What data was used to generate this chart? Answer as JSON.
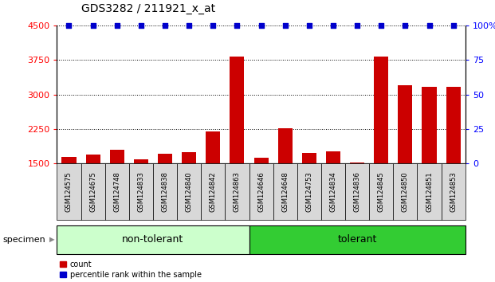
{
  "title": "GDS3282 / 211921_x_at",
  "categories": [
    "GSM124575",
    "GSM124675",
    "GSM124748",
    "GSM124833",
    "GSM124838",
    "GSM124840",
    "GSM124842",
    "GSM124863",
    "GSM124646",
    "GSM124648",
    "GSM124753",
    "GSM124834",
    "GSM124836",
    "GSM124845",
    "GSM124850",
    "GSM124851",
    "GSM124853"
  ],
  "count_values": [
    1650,
    1700,
    1800,
    1600,
    1720,
    1750,
    2200,
    3820,
    1620,
    2270,
    1730,
    1760,
    1530,
    3820,
    3200,
    3170,
    3170
  ],
  "percentile_values": [
    100,
    100,
    100,
    100,
    100,
    100,
    100,
    100,
    100,
    100,
    100,
    100,
    100,
    100,
    100,
    100,
    100
  ],
  "non_tolerant_count": 8,
  "tolerant_count": 9,
  "bar_color": "#cc0000",
  "dot_color": "#0000cc",
  "ylim_left": [
    1500,
    4500
  ],
  "ylim_right": [
    0,
    100
  ],
  "yticks_left": [
    1500,
    2250,
    3000,
    3750,
    4500
  ],
  "yticks_right": [
    0,
    25,
    50,
    75,
    100
  ],
  "non_tolerant_label": "non-tolerant",
  "tolerant_label": "tolerant",
  "legend_count": "count",
  "legend_percentile": "percentile rank within the sample",
  "non_tolerant_color": "#ccffcc",
  "tolerant_color": "#33cc33",
  "tick_area_color": "#d8d8d8",
  "title_fontsize": 10,
  "axis_label_fontsize": 8,
  "category_fontsize": 6,
  "group_fontsize": 9,
  "legend_fontsize": 7,
  "specimen_fontsize": 8
}
